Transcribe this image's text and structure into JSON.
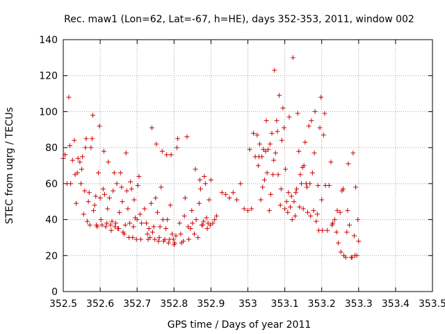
{
  "chart_data": {
    "type": "scatter",
    "title": "Rec. maw1 (Lon=62, Lat=-67, h=HE), days 352-353, 2011, window 002",
    "xlabel": "GPS time / Days of year 2011",
    "ylabel": "STEC from uqrg / TECUs",
    "xlim": [
      352.5,
      353.5
    ],
    "ylim": [
      0,
      140
    ],
    "xticks": [
      352.5,
      352.6,
      352.7,
      352.8,
      352.9,
      353,
      353.1,
      353.2,
      353.3,
      353.4,
      353.5
    ],
    "xtick_labels": [
      "352.5",
      "352.6",
      "352.7",
      "352.8",
      "352.9",
      "353",
      "353.1",
      "353.2",
      "353.3",
      "353.4",
      "353.5"
    ],
    "yticks": [
      0,
      20,
      40,
      60,
      80,
      100,
      120,
      140
    ],
    "ytick_labels": [
      "0",
      "20",
      "40",
      "60",
      "80",
      "100",
      "120",
      "140"
    ],
    "grid": true,
    "legend": "none",
    "marker": "+",
    "color": "#cc0000",
    "points": [
      [
        352.5,
        74
      ],
      [
        352.505,
        76
      ],
      [
        352.51,
        60
      ],
      [
        352.515,
        108
      ],
      [
        352.518,
        81
      ],
      [
        352.52,
        60
      ],
      [
        352.525,
        73
      ],
      [
        352.53,
        84
      ],
      [
        352.532,
        65
      ],
      [
        352.535,
        49
      ],
      [
        352.538,
        66
      ],
      [
        352.54,
        74
      ],
      [
        352.545,
        72
      ],
      [
        352.548,
        60
      ],
      [
        352.55,
        68
      ],
      [
        352.552,
        75
      ],
      [
        352.555,
        43
      ],
      [
        352.558,
        56
      ],
      [
        352.56,
        80
      ],
      [
        352.562,
        85
      ],
      [
        352.565,
        39
      ],
      [
        352.568,
        50
      ],
      [
        352.57,
        55
      ],
      [
        352.572,
        37
      ],
      [
        352.575,
        80
      ],
      [
        352.578,
        85
      ],
      [
        352.58,
        98
      ],
      [
        352.582,
        45
      ],
      [
        352.585,
        48
      ],
      [
        352.588,
        53
      ],
      [
        352.59,
        37
      ],
      [
        352.592,
        36
      ],
      [
        352.595,
        66
      ],
      [
        352.598,
        92
      ],
      [
        352.6,
        52
      ],
      [
        352.602,
        40
      ],
      [
        352.605,
        37
      ],
      [
        352.608,
        57
      ],
      [
        352.61,
        78
      ],
      [
        352.612,
        54
      ],
      [
        352.615,
        36
      ],
      [
        352.618,
        38
      ],
      [
        352.62,
        46
      ],
      [
        352.622,
        72
      ],
      [
        352.625,
        52
      ],
      [
        352.628,
        37
      ],
      [
        352.63,
        34
      ],
      [
        352.632,
        39
      ],
      [
        352.635,
        56
      ],
      [
        352.638,
        66
      ],
      [
        352.64,
        36
      ],
      [
        352.642,
        38
      ],
      [
        352.645,
        60
      ],
      [
        352.648,
        35
      ],
      [
        352.65,
        35
      ],
      [
        352.652,
        44
      ],
      [
        352.655,
        66
      ],
      [
        352.658,
        58
      ],
      [
        352.66,
        50
      ],
      [
        352.662,
        33
      ],
      [
        352.665,
        32
      ],
      [
        352.668,
        37
      ],
      [
        352.67,
        77
      ],
      [
        352.672,
        56
      ],
      [
        352.675,
        46
      ],
      [
        352.678,
        30
      ],
      [
        352.68,
        38
      ],
      [
        352.682,
        61
      ],
      [
        352.685,
        57
      ],
      [
        352.688,
        30
      ],
      [
        352.69,
        36
      ],
      [
        352.692,
        51
      ],
      [
        352.695,
        41
      ],
      [
        352.698,
        29
      ],
      [
        352.7,
        40
      ],
      [
        352.702,
        59
      ],
      [
        352.705,
        64
      ],
      [
        352.708,
        43
      ],
      [
        352.71,
        29
      ],
      [
        352.712,
        38
      ],
      [
        352.72,
        46
      ],
      [
        352.725,
        38
      ],
      [
        352.728,
        32
      ],
      [
        352.73,
        29
      ],
      [
        352.732,
        35
      ],
      [
        352.735,
        30
      ],
      [
        352.738,
        49
      ],
      [
        352.74,
        91
      ],
      [
        352.742,
        33
      ],
      [
        352.745,
        36
      ],
      [
        352.748,
        29
      ],
      [
        352.75,
        52
      ],
      [
        352.752,
        82
      ],
      [
        352.755,
        44
      ],
      [
        352.758,
        28
      ],
      [
        352.76,
        30
      ],
      [
        352.762,
        36
      ],
      [
        352.765,
        58
      ],
      [
        352.768,
        78
      ],
      [
        352.77,
        40
      ],
      [
        352.772,
        28
      ],
      [
        352.775,
        29
      ],
      [
        352.778,
        35
      ],
      [
        352.78,
        76
      ],
      [
        352.782,
        40
      ],
      [
        352.785,
        27
      ],
      [
        352.788,
        29
      ],
      [
        352.79,
        48
      ],
      [
        352.792,
        76
      ],
      [
        352.795,
        32
      ],
      [
        352.798,
        29
      ],
      [
        352.8,
        26
      ],
      [
        352.802,
        27
      ],
      [
        352.805,
        31
      ],
      [
        352.808,
        80
      ],
      [
        352.81,
        85
      ],
      [
        352.815,
        38
      ],
      [
        352.818,
        32
      ],
      [
        352.82,
        27
      ],
      [
        352.825,
        28
      ],
      [
        352.828,
        42
      ],
      [
        352.83,
        52
      ],
      [
        352.835,
        86
      ],
      [
        352.838,
        36
      ],
      [
        352.84,
        29
      ],
      [
        352.845,
        35
      ],
      [
        352.848,
        45
      ],
      [
        352.85,
        38
      ],
      [
        352.855,
        32
      ],
      [
        352.858,
        68
      ],
      [
        352.86,
        40
      ],
      [
        352.865,
        30
      ],
      [
        352.868,
        49
      ],
      [
        352.87,
        62
      ],
      [
        352.872,
        57
      ],
      [
        352.875,
        37
      ],
      [
        352.878,
        37
      ],
      [
        352.88,
        39
      ],
      [
        352.882,
        64
      ],
      [
        352.885,
        60
      ],
      [
        352.888,
        41
      ],
      [
        352.89,
        35
      ],
      [
        352.892,
        38
      ],
      [
        352.895,
        51
      ],
      [
        352.898,
        37
      ],
      [
        352.9,
        62
      ],
      [
        352.905,
        38
      ],
      [
        352.91,
        40
      ],
      [
        352.915,
        42
      ],
      [
        352.93,
        55
      ],
      [
        352.94,
        54
      ],
      [
        352.95,
        52
      ],
      [
        352.96,
        55
      ],
      [
        352.97,
        51
      ],
      [
        352.98,
        60
      ],
      [
        352.99,
        46
      ],
      [
        353.0,
        45
      ],
      [
        353.005,
        79
      ],
      [
        353.01,
        46
      ],
      [
        353.015,
        88
      ],
      [
        353.02,
        75
      ],
      [
        353.025,
        87
      ],
      [
        353.028,
        70
      ],
      [
        353.03,
        75
      ],
      [
        353.032,
        82
      ],
      [
        353.035,
        51
      ],
      [
        353.038,
        75
      ],
      [
        353.04,
        58
      ],
      [
        353.042,
        79
      ],
      [
        353.045,
        62
      ],
      [
        353.048,
        78
      ],
      [
        353.05,
        95
      ],
      [
        353.052,
        66
      ],
      [
        353.055,
        79
      ],
      [
        353.058,
        45
      ],
      [
        353.06,
        82
      ],
      [
        353.062,
        54
      ],
      [
        353.065,
        88
      ],
      [
        353.068,
        65
      ],
      [
        353.07,
        73
      ],
      [
        353.072,
        123
      ],
      [
        353.075,
        77
      ],
      [
        353.078,
        95
      ],
      [
        353.08,
        89
      ],
      [
        353.082,
        65
      ],
      [
        353.085,
        109
      ],
      [
        353.088,
        48
      ],
      [
        353.09,
        57
      ],
      [
        353.092,
        84
      ],
      [
        353.095,
        102
      ],
      [
        353.098,
        91
      ],
      [
        353.1,
        46
      ],
      [
        353.102,
        68
      ],
      [
        353.105,
        50
      ],
      [
        353.108,
        44
      ],
      [
        353.11,
        55
      ],
      [
        353.112,
        97
      ],
      [
        353.115,
        47
      ],
      [
        353.118,
        53
      ],
      [
        353.12,
        40
      ],
      [
        353.122,
        130
      ],
      [
        353.125,
        50
      ],
      [
        353.128,
        42
      ],
      [
        353.13,
        55
      ],
      [
        353.132,
        57
      ],
      [
        353.135,
        99
      ],
      [
        353.138,
        78
      ],
      [
        353.14,
        47
      ],
      [
        353.142,
        65
      ],
      [
        353.145,
        60
      ],
      [
        353.148,
        69
      ],
      [
        353.15,
        46
      ],
      [
        353.152,
        70
      ],
      [
        353.155,
        83
      ],
      [
        353.158,
        60
      ],
      [
        353.16,
        58
      ],
      [
        353.162,
        44
      ],
      [
        353.165,
        92
      ],
      [
        353.168,
        60
      ],
      [
        353.17,
        42
      ],
      [
        353.172,
        95
      ],
      [
        353.175,
        66
      ],
      [
        353.178,
        45
      ],
      [
        353.18,
        77
      ],
      [
        353.182,
        100
      ],
      [
        353.185,
        39
      ],
      [
        353.188,
        43
      ],
      [
        353.19,
        59
      ],
      [
        353.192,
        34
      ],
      [
        353.195,
        91
      ],
      [
        353.198,
        108
      ],
      [
        353.2,
        51
      ],
      [
        353.202,
        34
      ],
      [
        353.205,
        87
      ],
      [
        353.208,
        99
      ],
      [
        353.21,
        59
      ],
      [
        353.215,
        34
      ],
      [
        353.22,
        59
      ],
      [
        353.225,
        72
      ],
      [
        353.228,
        37
      ],
      [
        353.23,
        38
      ],
      [
        353.235,
        40
      ],
      [
        353.24,
        33
      ],
      [
        353.242,
        45
      ],
      [
        353.245,
        27
      ],
      [
        353.25,
        44
      ],
      [
        353.252,
        22
      ],
      [
        353.255,
        56
      ],
      [
        353.258,
        57
      ],
      [
        353.26,
        20
      ],
      [
        353.265,
        19
      ],
      [
        353.268,
        33
      ],
      [
        353.27,
        45
      ],
      [
        353.272,
        71
      ],
      [
        353.275,
        37
      ],
      [
        353.28,
        19
      ],
      [
        353.282,
        19
      ],
      [
        353.285,
        77
      ],
      [
        353.288,
        31
      ],
      [
        353.29,
        20
      ],
      [
        353.292,
        58
      ],
      [
        353.295,
        20
      ],
      [
        353.298,
        40
      ],
      [
        353.3,
        28
      ]
    ]
  }
}
